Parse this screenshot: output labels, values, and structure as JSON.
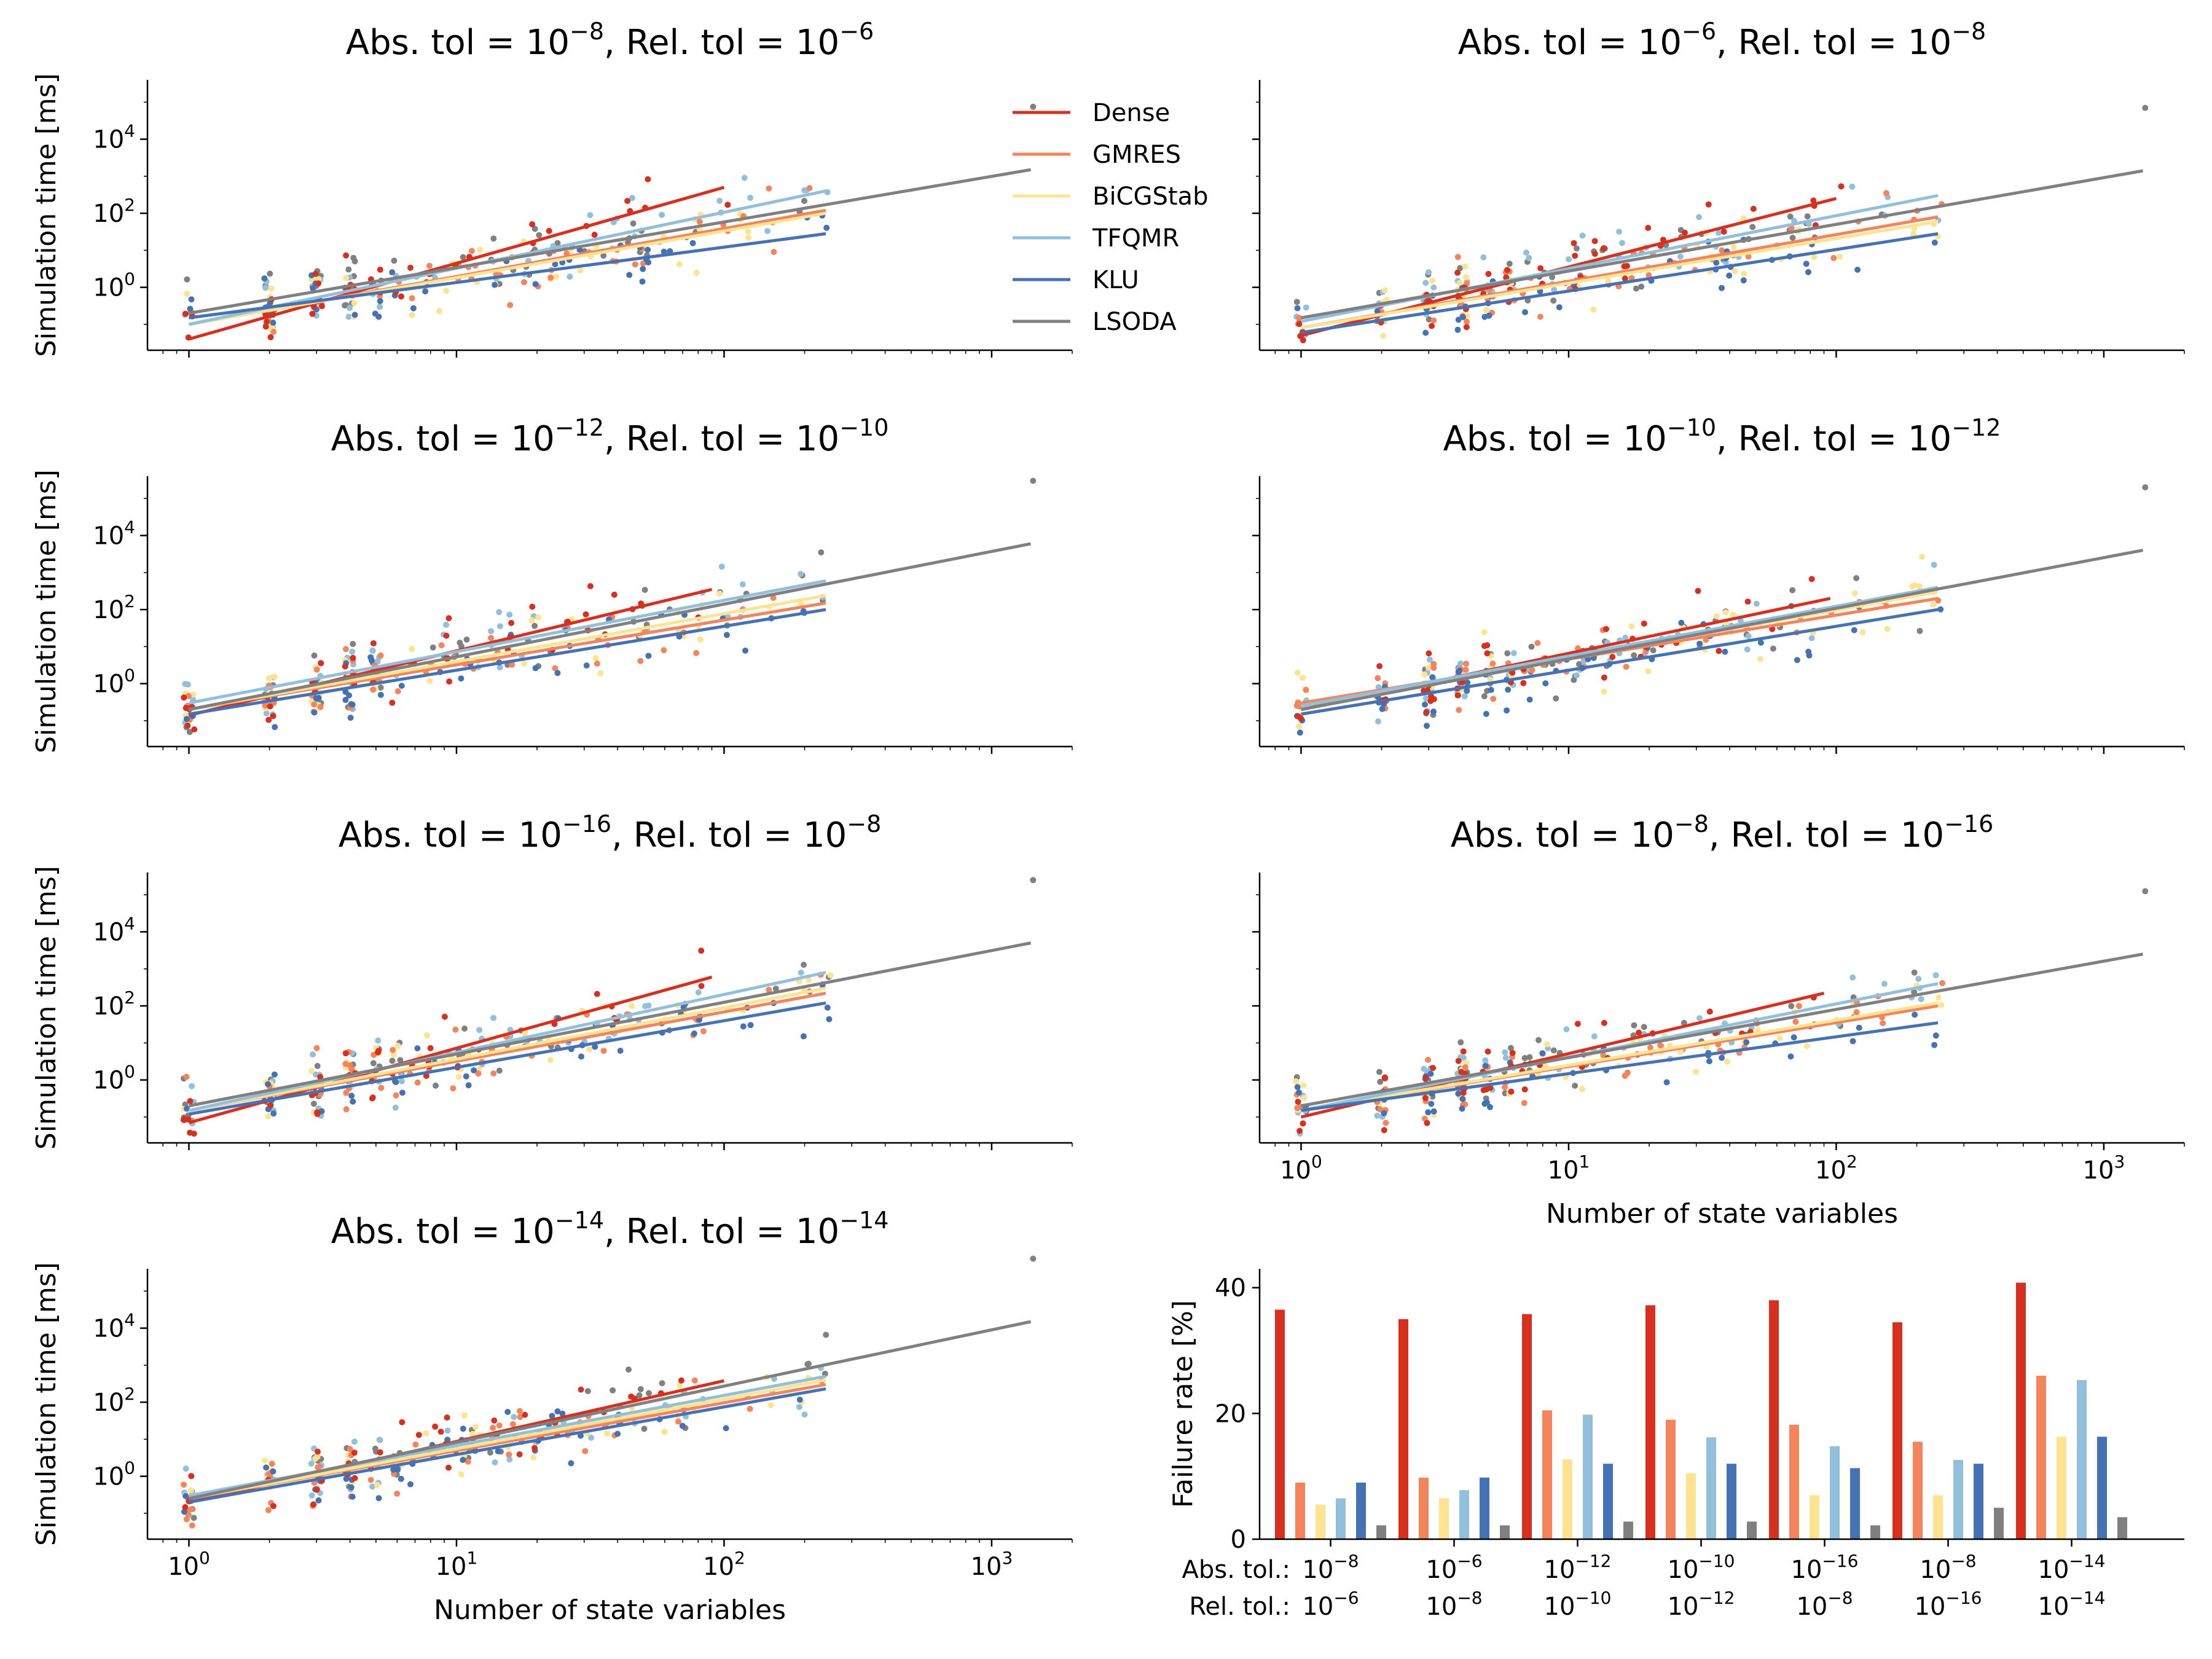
{
  "colors": {
    "Dense": "#d7301f",
    "GMRES": "#f4845c",
    "BiCGStab": "#fee391",
    "TFQMR": "#92c0dc",
    "KLU": "#4472b4",
    "LSODA": "#808080"
  },
  "legend": [
    "Dense",
    "GMRES",
    "BiCGStab",
    "TFQMR",
    "KLU",
    "LSODA"
  ],
  "axis_labels": {
    "y": "Simulation time [ms]",
    "x": "Number of state variables",
    "failure_y": "Failure rate [%]",
    "abs_row": "Abs. tol.:",
    "rel_row": "Rel. tol.:"
  },
  "title_words": {
    "abs": "Abs. tol = 10",
    "rel": ", Rel. tol = 10"
  },
  "chart_data": [
    {
      "type": "scatter",
      "abs_exp": "−8",
      "rel_exp": "−6",
      "xscale": "log",
      "yscale": "log",
      "xlim": [
        0.7,
        2000
      ],
      "ylim": [
        0.02,
        400000
      ],
      "fits": [
        {
          "name": "Dense",
          "x": [
            1,
            100
          ],
          "y": [
            0.04,
            500
          ]
        },
        {
          "name": "GMRES",
          "x": [
            1,
            240
          ],
          "y": [
            0.1,
            120
          ]
        },
        {
          "name": "BiCGStab",
          "x": [
            1,
            240
          ],
          "y": [
            0.1,
            100
          ]
        },
        {
          "name": "TFQMR",
          "x": [
            1,
            240
          ],
          "y": [
            0.1,
            400
          ]
        },
        {
          "name": "KLU",
          "x": [
            1,
            240
          ],
          "y": [
            0.15,
            28
          ]
        },
        {
          "name": "LSODA",
          "x": [
            1,
            1400
          ],
          "y": [
            0.2,
            1500
          ]
        }
      ]
    },
    {
      "type": "scatter",
      "abs_exp": "−6",
      "rel_exp": "−8",
      "xscale": "log",
      "yscale": "log",
      "xlim": [
        0.7,
        2000
      ],
      "ylim": [
        0.02,
        400000
      ],
      "fits": [
        {
          "name": "Dense",
          "x": [
            1,
            100
          ],
          "y": [
            0.05,
            250
          ]
        },
        {
          "name": "GMRES",
          "x": [
            1,
            240
          ],
          "y": [
            0.08,
            80
          ]
        },
        {
          "name": "BiCGStab",
          "x": [
            1,
            240
          ],
          "y": [
            0.08,
            60
          ]
        },
        {
          "name": "TFQMR",
          "x": [
            1,
            240
          ],
          "y": [
            0.12,
            300
          ]
        },
        {
          "name": "KLU",
          "x": [
            1,
            240
          ],
          "y": [
            0.06,
            28
          ]
        },
        {
          "name": "LSODA",
          "x": [
            1,
            1400
          ],
          "y": [
            0.15,
            1400
          ]
        }
      ]
    },
    {
      "type": "scatter",
      "abs_exp": "−12",
      "rel_exp": "−10",
      "xscale": "log",
      "yscale": "log",
      "xlim": [
        0.7,
        2000
      ],
      "ylim": [
        0.02,
        400000
      ],
      "fits": [
        {
          "name": "Dense",
          "x": [
            1,
            90
          ],
          "y": [
            0.14,
            350
          ]
        },
        {
          "name": "GMRES",
          "x": [
            1,
            240
          ],
          "y": [
            0.2,
            150
          ]
        },
        {
          "name": "BiCGStab",
          "x": [
            1,
            240
          ],
          "y": [
            0.2,
            240
          ]
        },
        {
          "name": "TFQMR",
          "x": [
            1,
            240
          ],
          "y": [
            0.3,
            600
          ]
        },
        {
          "name": "KLU",
          "x": [
            1,
            240
          ],
          "y": [
            0.15,
            100
          ]
        },
        {
          "name": "LSODA",
          "x": [
            1,
            1400
          ],
          "y": [
            0.2,
            6000
          ]
        }
      ]
    },
    {
      "type": "scatter",
      "abs_exp": "−10",
      "rel_exp": "−12",
      "xscale": "log",
      "yscale": "log",
      "xlim": [
        0.7,
        2000
      ],
      "ylim": [
        0.02,
        400000
      ],
      "fits": [
        {
          "name": "Dense",
          "x": [
            1,
            95
          ],
          "y": [
            0.2,
            200
          ]
        },
        {
          "name": "GMRES",
          "x": [
            1,
            240
          ],
          "y": [
            0.3,
            200
          ]
        },
        {
          "name": "BiCGStab",
          "x": [
            1,
            240
          ],
          "y": [
            0.25,
            300
          ]
        },
        {
          "name": "TFQMR",
          "x": [
            1,
            240
          ],
          "y": [
            0.25,
            400
          ]
        },
        {
          "name": "KLU",
          "x": [
            1,
            240
          ],
          "y": [
            0.15,
            100
          ]
        },
        {
          "name": "LSODA",
          "x": [
            1,
            1400
          ],
          "y": [
            0.2,
            4000
          ]
        }
      ]
    },
    {
      "type": "scatter",
      "abs_exp": "−16",
      "rel_exp": "−8",
      "xscale": "log",
      "yscale": "log",
      "xlim": [
        0.7,
        2000
      ],
      "ylim": [
        0.02,
        400000
      ],
      "fits": [
        {
          "name": "Dense",
          "x": [
            1,
            90
          ],
          "y": [
            0.07,
            600
          ]
        },
        {
          "name": "GMRES",
          "x": [
            1,
            240
          ],
          "y": [
            0.15,
            220
          ]
        },
        {
          "name": "BiCGStab",
          "x": [
            1,
            240
          ],
          "y": [
            0.15,
            300
          ]
        },
        {
          "name": "TFQMR",
          "x": [
            1,
            240
          ],
          "y": [
            0.15,
            800
          ]
        },
        {
          "name": "KLU",
          "x": [
            1,
            240
          ],
          "y": [
            0.12,
            120
          ]
        },
        {
          "name": "LSODA",
          "x": [
            1,
            1400
          ],
          "y": [
            0.2,
            5000
          ]
        }
      ]
    },
    {
      "type": "scatter",
      "abs_exp": "−8",
      "rel_exp": "−16",
      "xscale": "log",
      "yscale": "log",
      "xlim": [
        0.7,
        2000
      ],
      "ylim": [
        0.02,
        400000
      ],
      "xticks": [
        "10^0",
        "10^1",
        "10^2",
        "10^3"
      ],
      "fits": [
        {
          "name": "Dense",
          "x": [
            1,
            90
          ],
          "y": [
            0.1,
            220
          ]
        },
        {
          "name": "GMRES",
          "x": [
            1,
            240
          ],
          "y": [
            0.15,
            100
          ]
        },
        {
          "name": "BiCGStab",
          "x": [
            1,
            240
          ],
          "y": [
            0.15,
            120
          ]
        },
        {
          "name": "TFQMR",
          "x": [
            1,
            240
          ],
          "y": [
            0.15,
            400
          ]
        },
        {
          "name": "KLU",
          "x": [
            1,
            240
          ],
          "y": [
            0.15,
            35
          ]
        },
        {
          "name": "LSODA",
          "x": [
            1,
            1400
          ],
          "y": [
            0.2,
            2500
          ]
        }
      ]
    },
    {
      "type": "scatter",
      "abs_exp": "−14",
      "rel_exp": "−14",
      "xscale": "log",
      "yscale": "log",
      "xlim": [
        0.7,
        2000
      ],
      "ylim": [
        0.02,
        400000
      ],
      "xticks": [
        "10^0",
        "10^1",
        "10^2",
        "10^3"
      ],
      "fits": [
        {
          "name": "Dense",
          "x": [
            1,
            100
          ],
          "y": [
            0.2,
            380
          ]
        },
        {
          "name": "GMRES",
          "x": [
            1,
            240
          ],
          "y": [
            0.25,
            300
          ]
        },
        {
          "name": "BiCGStab",
          "x": [
            1,
            240
          ],
          "y": [
            0.25,
            400
          ]
        },
        {
          "name": "TFQMR",
          "x": [
            1,
            240
          ],
          "y": [
            0.3,
            500
          ]
        },
        {
          "name": "KLU",
          "x": [
            1,
            240
          ],
          "y": [
            0.2,
            230
          ]
        },
        {
          "name": "LSODA",
          "x": [
            1,
            1400
          ],
          "y": [
            0.25,
            15000
          ]
        }
      ]
    },
    {
      "type": "bar",
      "ylim": [
        0,
        43
      ],
      "yticks": [
        0,
        20,
        40
      ],
      "ylabel": "Failure rate [%]",
      "groups": [
        {
          "abs": "−8",
          "rel": "−6"
        },
        {
          "abs": "−6",
          "rel": "−8"
        },
        {
          "abs": "−12",
          "rel": "−10"
        },
        {
          "abs": "−10",
          "rel": "−12"
        },
        {
          "abs": "−16",
          "rel": "−8"
        },
        {
          "abs": "−8",
          "rel": "−16"
        },
        {
          "abs": "−14",
          "rel": "−14"
        }
      ],
      "series": [
        {
          "name": "Dense",
          "values": [
            36.5,
            35,
            35.8,
            37.2,
            38,
            34.5,
            40.8
          ]
        },
        {
          "name": "GMRES",
          "values": [
            9,
            9.8,
            20.5,
            19,
            18.2,
            15.5,
            26
          ]
        },
        {
          "name": "BiCGStab",
          "values": [
            5.5,
            6.5,
            12.7,
            10.5,
            7,
            7,
            16.3
          ]
        },
        {
          "name": "TFQMR",
          "values": [
            6.5,
            7.8,
            19.8,
            16.2,
            14.8,
            12.6,
            25.3
          ]
        },
        {
          "name": "KLU",
          "values": [
            9,
            9.8,
            12,
            12,
            11.3,
            12,
            16.3
          ]
        },
        {
          "name": "LSODA",
          "values": [
            2.2,
            2.2,
            2.8,
            2.8,
            2.2,
            5,
            3.5
          ]
        }
      ]
    }
  ]
}
